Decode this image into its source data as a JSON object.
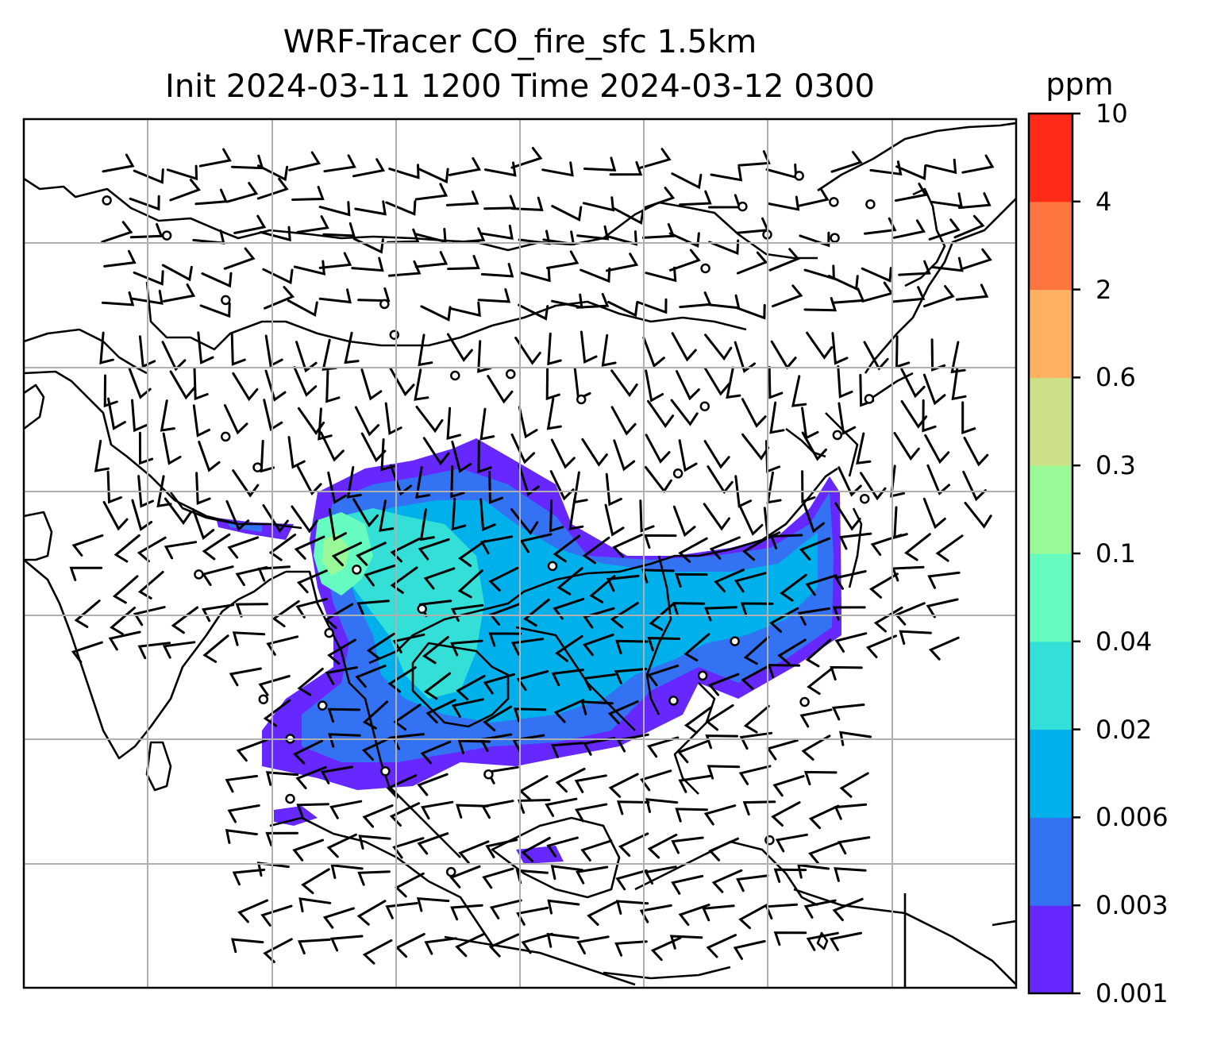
{
  "title": {
    "line1": "WRF-Tracer CO_fire_sfc 1.5km",
    "line2": "Init 2024-03-11 1200 Time 2024-03-12 0300"
  },
  "colorbar": {
    "unit": "ppm",
    "ticks": [
      "0.001",
      "0.003",
      "0.006",
      "0.02",
      "0.04",
      "0.1",
      "0.3",
      "0.6",
      "2",
      "4",
      "10"
    ],
    "colors": [
      "#6628ff",
      "#3373f3",
      "#00b0ea",
      "#33dfd7",
      "#66fcc0",
      "#99f998",
      "#cce088",
      "#ffb060",
      "#ff7540",
      "#ff2a18"
    ]
  },
  "chart_data": {
    "type": "heatmap",
    "grid": "on",
    "variable": "CO_fire_sfc",
    "levels": [
      0.001,
      0.003,
      0.006,
      0.02,
      0.04,
      0.1,
      0.3,
      0.6,
      2,
      4,
      10
    ]
  }
}
